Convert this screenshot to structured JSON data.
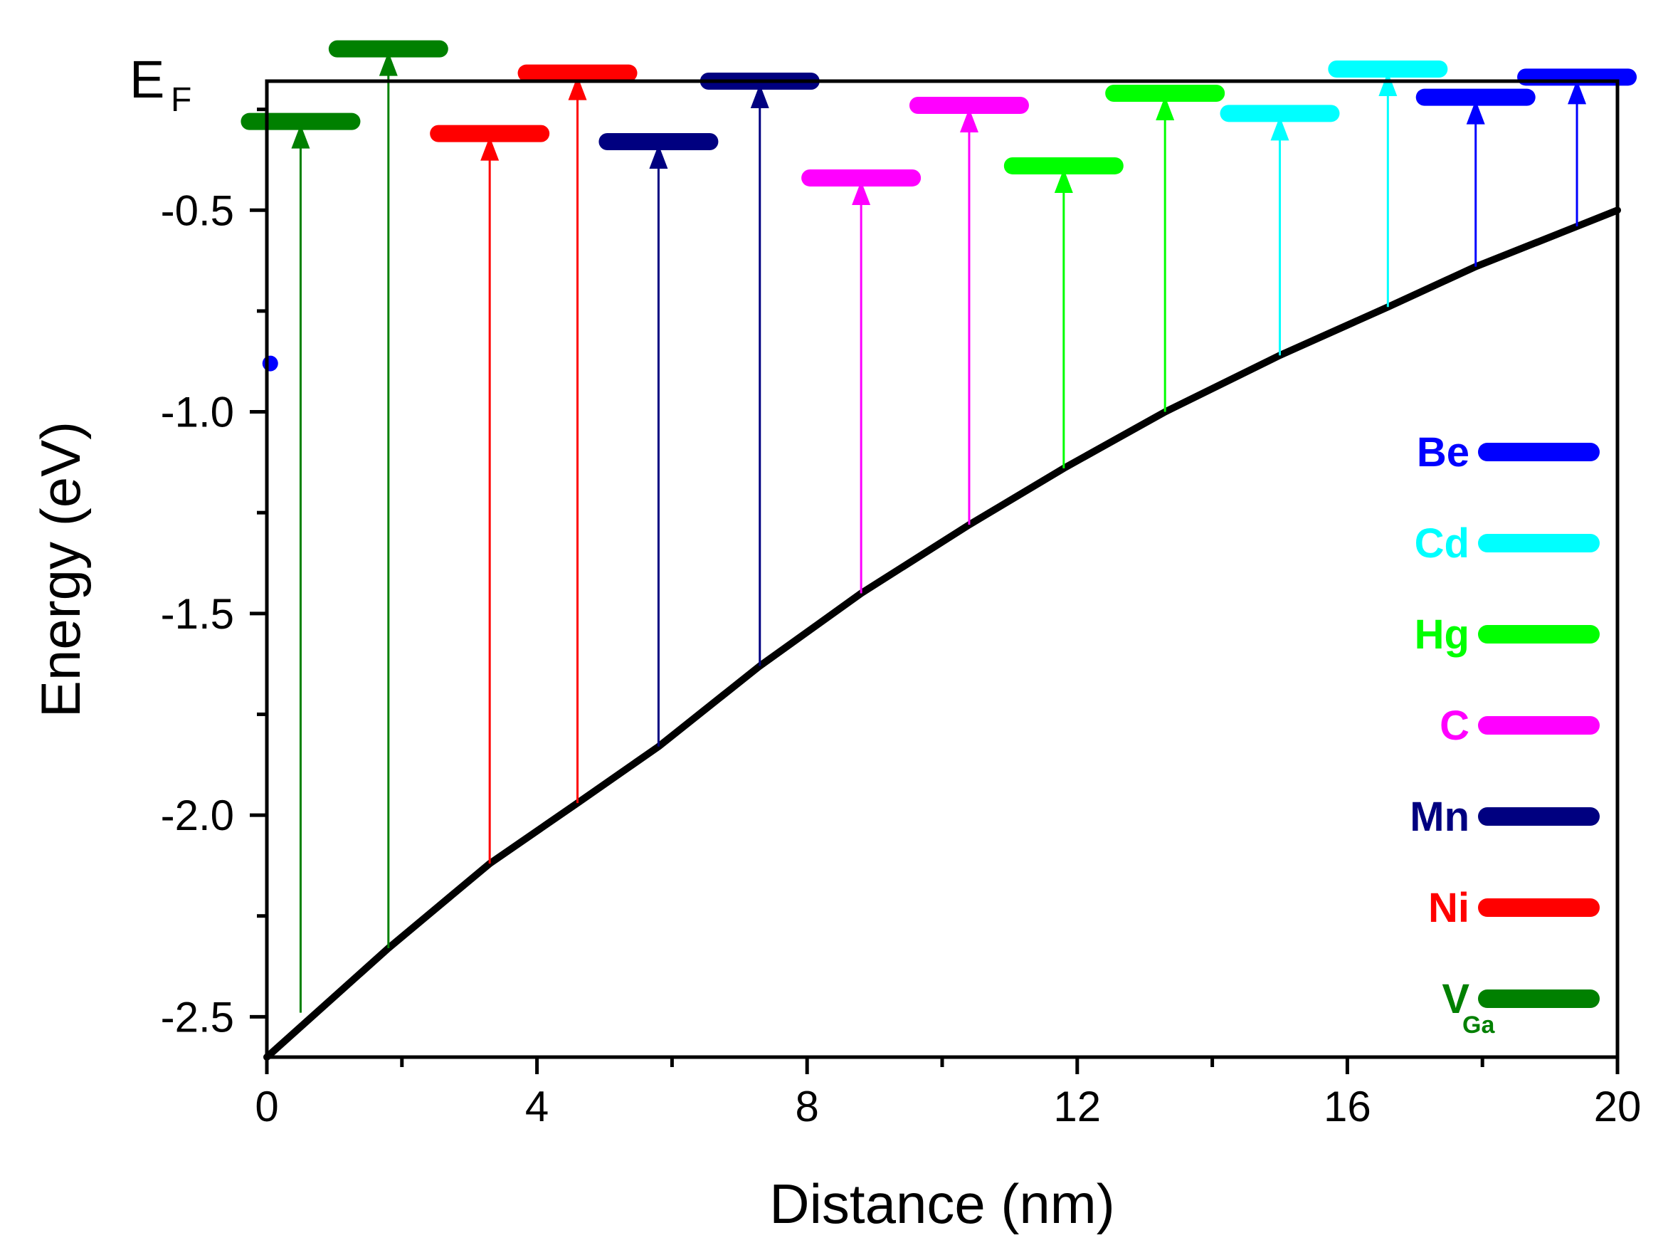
{
  "chart_data": {
    "type": "line",
    "title": "",
    "xlabel": "Distance (nm)",
    "ylabel": "Energy (eV)",
    "xlim": [
      0,
      20
    ],
    "ylim": [
      -2.6,
      -0.18
    ],
    "xticks": [
      0,
      4,
      8,
      12,
      16,
      20
    ],
    "xtick_labels": [
      "0",
      "4",
      "8",
      "12",
      "16",
      "20"
    ],
    "xminor": [
      2,
      6,
      10,
      14,
      18
    ],
    "yticks": [
      -0.5,
      -1.0,
      -1.5,
      -2.0,
      -2.5
    ],
    "ytick_labels": [
      "-0.5",
      "-1.0",
      "-1.5",
      "-2.0",
      "-2.5"
    ],
    "yminor": [
      -0.25,
      -0.75,
      -1.25,
      -1.75,
      -2.25
    ],
    "fermi_label": "E",
    "fermi_sub": "F",
    "fermi_level": -0.18,
    "band_edge": {
      "name": "band edge",
      "color": "#000000",
      "x": [
        0,
        1.8,
        3.3,
        4.6,
        5.8,
        7.3,
        8.8,
        10.4,
        11.8,
        13.3,
        15.0,
        16.6,
        17.9,
        19.4,
        20
      ],
      "y": [
        -2.6,
        -2.33,
        -2.12,
        -1.97,
        -1.83,
        -1.63,
        -1.45,
        -1.28,
        -1.14,
        -1.0,
        -0.86,
        -0.74,
        -0.64,
        -0.54,
        -0.5
      ]
    },
    "vga_start_point": {
      "x": 0.05,
      "y": -0.88,
      "color": "#0000ff"
    },
    "series": [
      {
        "name": "Be",
        "color": "#0000ff",
        "transitions": [
          {
            "x": 17.9,
            "from": -0.64,
            "level": -0.22
          },
          {
            "x": 19.4,
            "from": -0.54,
            "level": -0.17
          }
        ]
      },
      {
        "name": "Cd",
        "color": "#00ffff",
        "transitions": [
          {
            "x": 15.0,
            "from": -0.86,
            "level": -0.26
          },
          {
            "x": 16.6,
            "from": -0.74,
            "level": -0.15
          }
        ]
      },
      {
        "name": "Hg",
        "color": "#00ff00",
        "transitions": [
          {
            "x": 11.8,
            "from": -1.14,
            "level": -0.39
          },
          {
            "x": 13.3,
            "from": -1.0,
            "level": -0.21
          }
        ]
      },
      {
        "name": "C",
        "color": "#ff00ff",
        "transitions": [
          {
            "x": 8.8,
            "from": -1.45,
            "level": -0.42
          },
          {
            "x": 10.4,
            "from": -1.28,
            "level": -0.24
          }
        ]
      },
      {
        "name": "Mn",
        "color": "#000080",
        "transitions": [
          {
            "x": 5.8,
            "from": -1.83,
            "level": -0.33
          },
          {
            "x": 7.3,
            "from": -1.63,
            "level": -0.18
          }
        ]
      },
      {
        "name": "Ni",
        "color": "#ff0000",
        "transitions": [
          {
            "x": 3.3,
            "from": -2.12,
            "level": -0.31
          },
          {
            "x": 4.6,
            "from": -1.97,
            "level": -0.16
          }
        ]
      },
      {
        "name": "V",
        "sub": "Ga",
        "color": "#008000",
        "transitions": [
          {
            "x": 0.5,
            "from": -2.49,
            "level": -0.28
          },
          {
            "x": 1.8,
            "from": -2.33,
            "level": -0.1
          }
        ]
      }
    ],
    "legend_position": "right"
  }
}
